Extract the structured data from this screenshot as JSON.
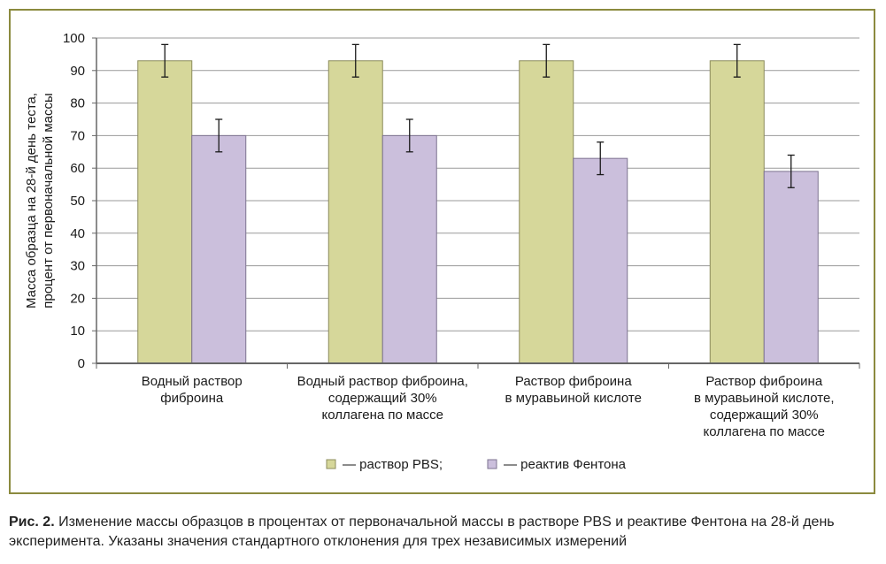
{
  "chart_data": {
    "type": "bar",
    "ylabel_lines": [
      "Масса образца на 28-й день теста,",
      "процент от первоначальной массы"
    ],
    "xlabel": "",
    "ylim": [
      0,
      100
    ],
    "yticks": [
      0,
      10,
      20,
      30,
      40,
      50,
      60,
      70,
      80,
      90,
      100
    ],
    "grid": true,
    "legend_position": "bottom",
    "categories": [
      [
        "Водный раствор",
        "фиброина"
      ],
      [
        "Водный раствор фиброина,",
        "содержащий 30%",
        "коллагена по массе"
      ],
      [
        "Раствор фиброина",
        "в муравьиной кислоте"
      ],
      [
        "Раствор фиброина",
        "в муравьиной кислоте,",
        "содержащий 30%",
        "коллагена по массе"
      ]
    ],
    "series": [
      {
        "name": "— раствор PBS;",
        "values": [
          93,
          93,
          93,
          93
        ],
        "errors": [
          5,
          5,
          5,
          5
        ],
        "color": "#d6d79a",
        "stroke": "#8c8c5c"
      },
      {
        "name": "— реактив Фентона",
        "values": [
          70,
          70,
          63,
          59
        ],
        "errors": [
          5,
          5,
          5,
          5
        ],
        "color": "#cbbfdc",
        "stroke": "#7d7390"
      }
    ]
  },
  "caption": {
    "label": "Рис. 2.",
    "text": " Изменение массы образцов в процентах от первоначальной массы в растворе PBS и реактиве Фентона на 28-й день эксперимента. Указаны значения стандартного отклонения для трех независимых измерений"
  },
  "colors": {
    "frame": "#8b8a3e",
    "grid": "#9a9a9a",
    "axis": "#666666"
  }
}
